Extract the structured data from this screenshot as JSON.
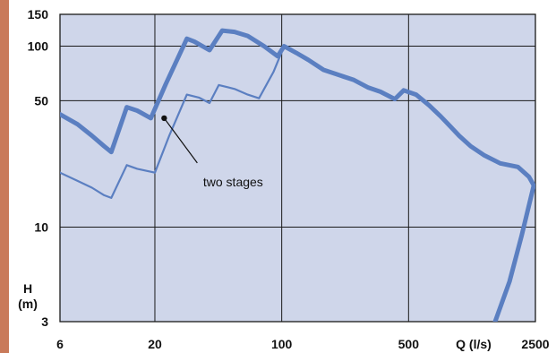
{
  "colors": {
    "plot_background": "#cfd6ea",
    "gridline": "#1a1a1a",
    "curve": "#5b7fc1",
    "edge_strip": "#c97a5a"
  },
  "chart_data": {
    "type": "line",
    "title": "",
    "xlabel": "Q (l/s)",
    "ylabel": "H (m)",
    "x_scale": "log",
    "y_scale": "log",
    "xlim": [
      6,
      2500
    ],
    "ylim": [
      3,
      150
    ],
    "x_ticks": [
      6,
      20,
      100,
      500,
      2500
    ],
    "y_ticks": [
      3,
      10,
      50,
      100,
      150
    ],
    "grid": true,
    "series": [
      {
        "style": "thick",
        "points": [
          [
            6,
            42
          ],
          [
            7.5,
            37
          ],
          [
            9,
            32
          ],
          [
            10.5,
            28
          ],
          [
            11.5,
            26
          ],
          [
            14,
            46
          ],
          [
            16,
            44
          ],
          [
            19,
            40
          ],
          [
            23,
            62
          ],
          [
            30,
            110
          ],
          [
            33,
            106
          ],
          [
            40,
            95
          ],
          [
            47,
            122
          ],
          [
            55,
            120
          ],
          [
            65,
            114
          ],
          [
            80,
            100
          ],
          [
            95,
            88
          ],
          [
            103,
            100
          ],
          [
            120,
            92
          ],
          [
            140,
            84
          ],
          [
            170,
            74
          ],
          [
            200,
            70
          ],
          [
            250,
            65
          ],
          [
            300,
            59
          ],
          [
            350,
            56
          ],
          [
            420,
            51
          ],
          [
            470,
            57
          ],
          [
            550,
            54
          ],
          [
            650,
            47
          ],
          [
            750,
            41
          ],
          [
            850,
            36
          ],
          [
            950,
            32
          ],
          [
            1100,
            28
          ],
          [
            1300,
            25
          ],
          [
            1600,
            22.5
          ],
          [
            2000,
            21.5
          ],
          [
            2300,
            19
          ],
          [
            2450,
            17
          ],
          [
            2100,
            9
          ],
          [
            1800,
            5
          ],
          [
            1500,
            3
          ]
        ]
      },
      {
        "name": "two stages",
        "style": "thin",
        "points": [
          [
            6,
            20
          ],
          [
            7.5,
            18
          ],
          [
            9,
            16.5
          ],
          [
            10.5,
            15
          ],
          [
            11.5,
            14.5
          ],
          [
            14,
            22
          ],
          [
            16,
            21
          ],
          [
            20,
            20
          ],
          [
            24,
            32
          ],
          [
            30,
            54
          ],
          [
            35,
            52
          ],
          [
            40,
            48.5
          ],
          [
            45,
            61
          ],
          [
            55,
            58
          ],
          [
            65,
            54
          ],
          [
            75,
            51.5
          ],
          [
            90,
            72
          ],
          [
            103,
            100
          ]
        ]
      }
    ],
    "annotations": [
      {
        "text": "two stages",
        "point": [
          22.5,
          40
        ]
      }
    ]
  }
}
